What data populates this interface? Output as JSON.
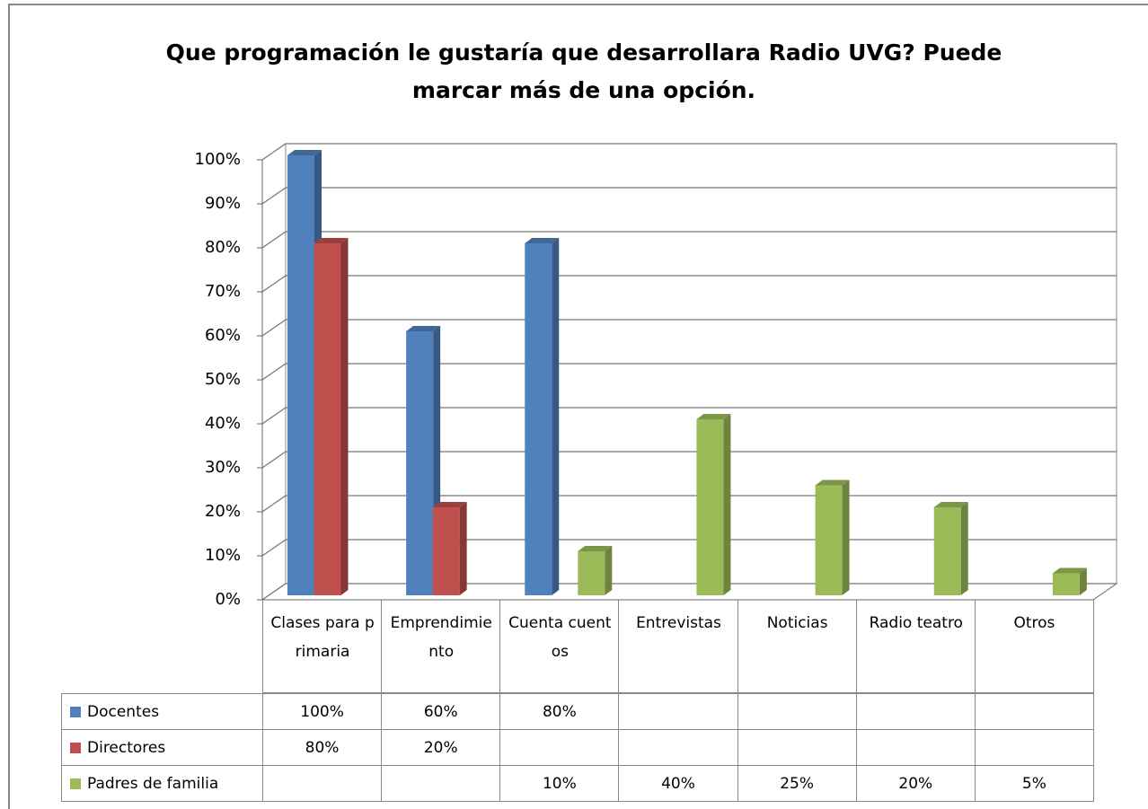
{
  "chart_data": {
    "type": "bar3d",
    "title": "Que programación le gustaría que desarrollara Radio UVG? Puede marcar más de una opción.",
    "categories": [
      "Clases para primaria",
      "Emprendimiento",
      "Cuenta cuentos",
      "Entrevistas",
      "Noticias",
      "Radio teatro",
      "Otros"
    ],
    "series": [
      {
        "name": "Docentes",
        "color": "#4f81bd",
        "values": [
          100,
          60,
          80,
          null,
          null,
          null,
          null
        ],
        "value_labels": [
          "100%",
          "60%",
          "80%",
          null,
          null,
          null,
          null
        ]
      },
      {
        "name": "Directores",
        "color": "#c0504d",
        "values": [
          80,
          20,
          null,
          null,
          null,
          null,
          null
        ],
        "value_labels": [
          "80%",
          "20%",
          null,
          null,
          null,
          null,
          null
        ]
      },
      {
        "name": "Padres de familia",
        "color": "#9bbb59",
        "values": [
          null,
          null,
          10,
          40,
          25,
          20,
          5
        ],
        "value_labels": [
          null,
          null,
          "10%",
          "40%",
          "25%",
          "20%",
          "5%"
        ]
      }
    ],
    "ylim": [
      0,
      100
    ],
    "yticks": [
      {
        "value": 0,
        "label": "0%"
      },
      {
        "value": 10,
        "label": "10%"
      },
      {
        "value": 20,
        "label": "20%"
      },
      {
        "value": 30,
        "label": "30%"
      },
      {
        "value": 40,
        "label": "40%"
      },
      {
        "value": 50,
        "label": "50%"
      },
      {
        "value": 60,
        "label": "60%"
      },
      {
        "value": 70,
        "label": "70%"
      },
      {
        "value": 80,
        "label": "80%"
      },
      {
        "value": 90,
        "label": "90%"
      },
      {
        "value": 100,
        "label": "100%"
      }
    ],
    "grid": true,
    "data_table": true
  }
}
